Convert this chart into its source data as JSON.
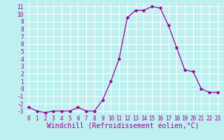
{
  "x": [
    0,
    1,
    2,
    3,
    4,
    5,
    6,
    7,
    8,
    9,
    10,
    11,
    12,
    13,
    14,
    15,
    16,
    17,
    18,
    19,
    20,
    21,
    22,
    23
  ],
  "y": [
    -2.5,
    -3.0,
    -3.2,
    -3.0,
    -3.0,
    -3.0,
    -2.5,
    -3.0,
    -3.0,
    -1.5,
    1.0,
    4.0,
    9.5,
    10.5,
    10.5,
    11.0,
    10.8,
    8.5,
    5.5,
    2.5,
    2.3,
    0.0,
    -0.5,
    -0.5
  ],
  "xlim": [
    -0.5,
    23.5
  ],
  "ylim": [
    -3.5,
    11.5
  ],
  "xticks": [
    0,
    1,
    2,
    3,
    4,
    5,
    6,
    7,
    8,
    9,
    10,
    11,
    12,
    13,
    14,
    15,
    16,
    17,
    18,
    19,
    20,
    21,
    22,
    23
  ],
  "yticks": [
    -3,
    -2,
    -1,
    0,
    1,
    2,
    3,
    4,
    5,
    6,
    7,
    8,
    9,
    10,
    11
  ],
  "xlabel": "Windchill (Refroidissement éolien,°C)",
  "line_color": "#990099",
  "marker": "D",
  "marker_size": 2.2,
  "bg_color": "#bef0f0",
  "grid_color": "#ffffff",
  "tick_labelsize": 5.5,
  "xlabel_fontsize": 7.0,
  "linewidth": 0.9
}
